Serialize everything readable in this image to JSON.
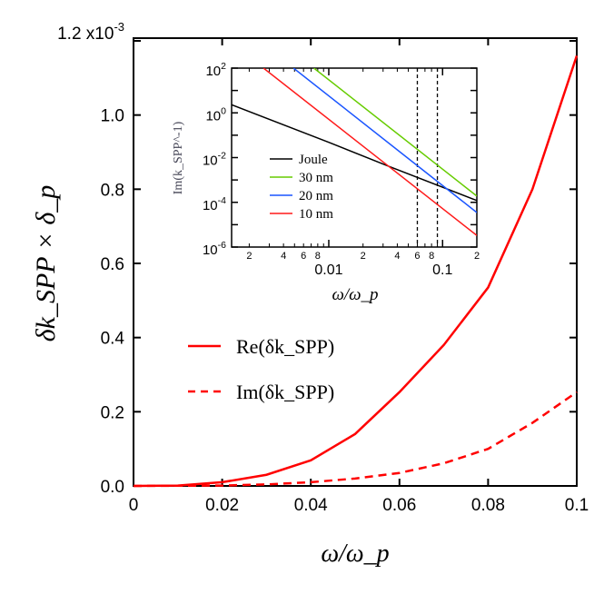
{
  "chart_data": [
    {
      "type": "line",
      "xlabel": "ω/ω_p",
      "ylabel": "δk_SPP × δ_p",
      "xlim": [
        0,
        0.1
      ],
      "ylim": [
        0,
        1.2
      ],
      "y_multiplier_label": "x10^-3",
      "xticks": [
        "0",
        "0.02",
        "0.04",
        "0.06",
        "0.08",
        "0.1"
      ],
      "yticks": [
        "0.0",
        "0.2",
        "0.4",
        "0.6",
        "0.8",
        "1.0",
        "1.2"
      ],
      "legend_position": "center-left",
      "series": [
        {
          "name": "Re(δk_SPP)",
          "style": "solid",
          "color": "#ff0000",
          "x": [
            0,
            0.01,
            0.02,
            0.03,
            0.04,
            0.05,
            0.06,
            0.07,
            0.08,
            0.09,
            0.1
          ],
          "y": [
            0,
            0.001,
            0.01,
            0.03,
            0.069,
            0.14,
            0.253,
            0.38,
            0.535,
            0.8,
            1.16
          ]
        },
        {
          "name": "Im(δk_SPP)",
          "style": "dashed",
          "color": "#ff0000",
          "x": [
            0,
            0.02,
            0.03,
            0.04,
            0.05,
            0.06,
            0.07,
            0.08,
            0.09,
            0.1
          ],
          "y": [
            0,
            0.001,
            0.004,
            0.01,
            0.02,
            0.035,
            0.061,
            0.1,
            0.17,
            0.253
          ]
        }
      ]
    },
    {
      "type": "line",
      "xlabel": "ω/ω_p",
      "ylabel": "Im(k_SPP^-1)",
      "xscale": "log",
      "yscale": "log",
      "xlim": [
        0.0014,
        0.2
      ],
      "ylim": [
        1e-06,
        100
      ],
      "xtick_major": [
        "0.01",
        "0.1"
      ],
      "xtick_minor_labels": [
        "2",
        "4",
        "6",
        "8",
        "2",
        "4",
        "6",
        "8",
        "2"
      ],
      "yticks": [
        "10^2",
        "10^0",
        "10^-2",
        "10^-4",
        "10^-6"
      ],
      "legend_position": "lower-left",
      "vertical_dashed_lines": [
        0.06,
        0.09
      ],
      "series": [
        {
          "name": "Joule",
          "color": "#000000",
          "x": [
            0.0014,
            0.01,
            0.034,
            0.2
          ],
          "y": [
            2.3,
            0.048,
            0.004,
            0.00012
          ]
        },
        {
          "name": "30 nm",
          "color": "#66cc00",
          "x": [
            0.0074,
            0.2
          ],
          "y": [
            100,
            0.00019
          ]
        },
        {
          "name": "20 nm",
          "color": "#1a55ff",
          "x": [
            0.0049,
            0.2
          ],
          "y": [
            100,
            3.5e-05
          ]
        },
        {
          "name": "10 nm",
          "color": "#ff1a1a",
          "x": [
            0.00267,
            0.2
          ],
          "y": [
            100,
            3.3e-06
          ]
        }
      ]
    }
  ]
}
